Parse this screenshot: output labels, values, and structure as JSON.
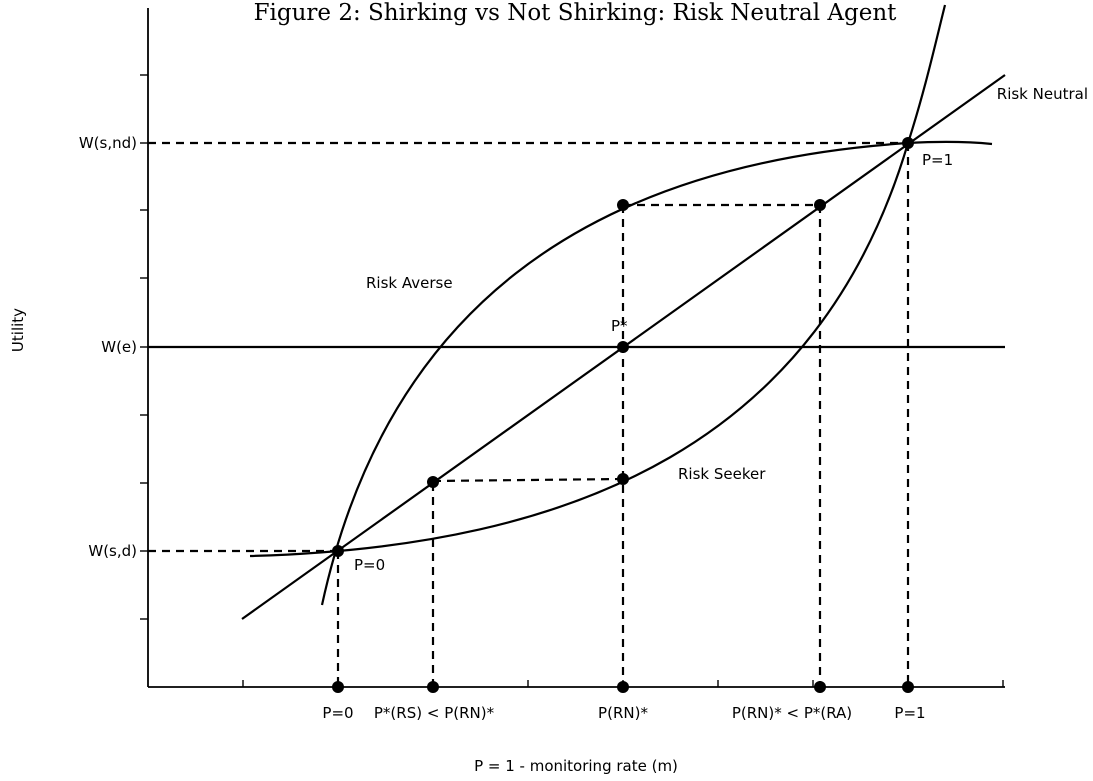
{
  "title": "Figure 2: Shirking vs Not Shirking: Risk Neutral Agent",
  "y_axis_label": "Utility",
  "x_axis_label": "P = 1 - monitoring rate (m)",
  "y_labels": {
    "w_s_nd": "W(s,nd)",
    "w_e": "W(e)",
    "w_s_d": "W(s,d)"
  },
  "x_labels": {
    "p0": "P=0",
    "p_rs": "P*(RS) < P(RN)*",
    "p_rn": "P(RN)*",
    "p_ra": "P(RN)* < P*(RA)",
    "p1": "P=1"
  },
  "curve_labels": {
    "risk_neutral": "Risk Neutral",
    "risk_averse": "Risk Averse",
    "risk_seeker": "Risk Seeker"
  },
  "point_labels": {
    "p0": "P=0",
    "p1": "P=1",
    "p_star": "P*"
  }
}
